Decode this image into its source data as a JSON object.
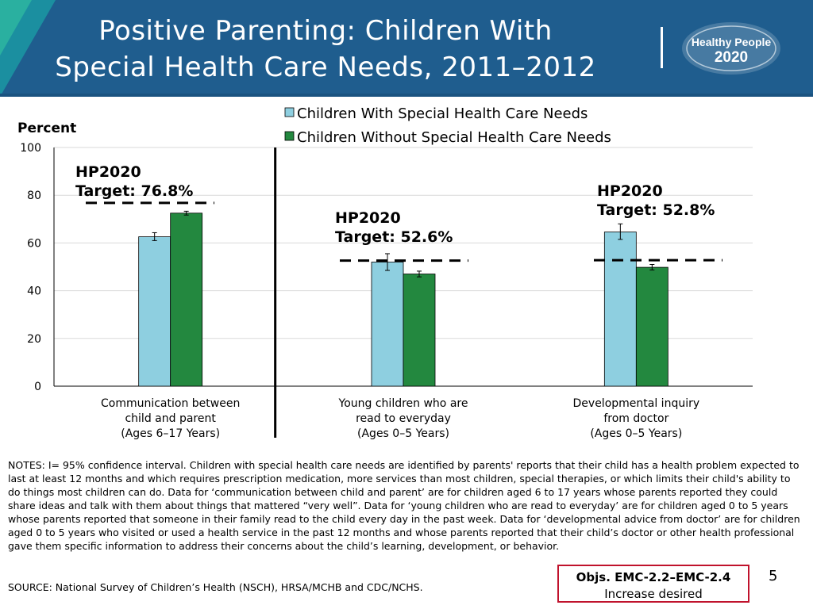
{
  "header": {
    "title": "Positive Parenting:  Children With Special Health Care Needs, 2011–2012",
    "logo_line1": "Healthy People",
    "logo_line2": "2020"
  },
  "colors": {
    "series1": "#8ecfe0",
    "series2": "#23883f",
    "header_bg": "#1f5d8e",
    "objbox_border": "#c0122c"
  },
  "chart_data": {
    "type": "bar",
    "ylabel": "Percent",
    "ylim": [
      0,
      100
    ],
    "yticks": [
      0,
      20,
      40,
      60,
      80,
      100
    ],
    "categories": [
      [
        "Communication between",
        "child and parent",
        "(Ages 6–17 Years)"
      ],
      [
        "Young children who are",
        "read to everyday",
        "(Ages 0–5 Years)"
      ],
      [
        "Developmental inquiry",
        "from doctor",
        "(Ages 0–5 Years)"
      ]
    ],
    "series": [
      {
        "name": "Children With Special Health Care Needs",
        "values": [
          62.6,
          52.0,
          64.6
        ],
        "ci": [
          [
            61.0,
            64.3
          ],
          [
            48.5,
            55.5
          ],
          [
            61.5,
            68.0
          ]
        ]
      },
      {
        "name": "Children Without Special Health Care Needs",
        "values": [
          72.5,
          47.0,
          49.8
        ],
        "ci": [
          [
            71.7,
            73.3
          ],
          [
            45.8,
            48.2
          ],
          [
            48.7,
            51.0
          ]
        ]
      }
    ],
    "targets": [
      {
        "label_line1": "HP2020",
        "label_line2": "Target: 76.8%",
        "value": 76.8
      },
      {
        "label_line1": "HP2020",
        "label_line2": "Target: 52.6%",
        "value": 52.6
      },
      {
        "label_line1": "HP2020",
        "label_line2": "Target: 52.8%",
        "value": 52.8
      }
    ]
  },
  "footer": {
    "notes": "NOTES:  I= 95% confidence interval. Children with special health care needs are identified by parents' reports that their child has a health problem expected to last at least 12 months and which requires prescription medication, more services than most children, special therapies, or which limits their child's ability to do things most children can do. Data for ‘communication between child and parent’ are for children aged 6 to 17 years whose parents reported they could share ideas and talk with them about things that mattered “very well”. Data for ‘young children who are read to everyday’ are for children aged 0 to 5 years whose parents reported that someone in their family read to the child every day in the past week. Data for ‘developmental advice from doctor’ are for children aged 0 to 5 years who visited or used a health service in the past 12 months and whose parents reported that their child’s doctor or other health professional gave them specific information to address their concerns about the child’s learning, development, or behavior.",
    "source": "SOURCE: National Survey of Children’s Health (NSCH), HRSA/MCHB and CDC/NCHS.",
    "objectives": "Objs. EMC-2.2–EMC-2.4",
    "objectives_note": "Increase desired",
    "page_number": "5"
  }
}
